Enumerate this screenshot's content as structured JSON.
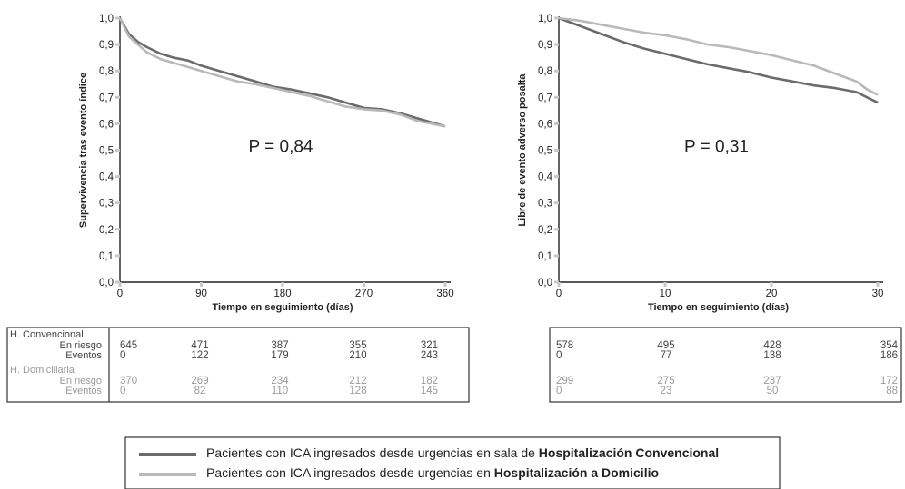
{
  "colors": {
    "conv": "#6b6b6b",
    "dom": "#b9b9b9",
    "axis": "#222222",
    "tick": "#c8c8c8"
  },
  "chart_data": [
    {
      "type": "line",
      "xlabel": "Tiempo en seguimiento (días)",
      "ylabel": "Supervivencia tras evento índice",
      "annotation": "P = 0,84",
      "xlim": [
        0,
        360
      ],
      "ylim": [
        0,
        1
      ],
      "xticks": [
        0,
        90,
        180,
        270,
        360
      ],
      "xtick_labels": [
        "0",
        "90",
        "180",
        "270",
        "360"
      ],
      "yticks": [
        0,
        0.1,
        0.2,
        0.3,
        0.4,
        0.5,
        0.6,
        0.7,
        0.8,
        0.9,
        1
      ],
      "ytick_labels": [
        "0,0",
        "0,1",
        "0,2",
        "0,3",
        "0,4",
        "0,5",
        "0,6",
        "0,7",
        "0,8",
        "0,9",
        "1,0"
      ],
      "grid": false,
      "series": [
        {
          "key": "conv",
          "x": [
            0,
            10,
            20,
            30,
            45,
            60,
            75,
            90,
            110,
            130,
            150,
            170,
            190,
            210,
            230,
            250,
            270,
            290,
            310,
            330,
            345,
            360
          ],
          "y": [
            1.0,
            0.94,
            0.91,
            0.89,
            0.865,
            0.85,
            0.84,
            0.82,
            0.8,
            0.78,
            0.76,
            0.74,
            0.73,
            0.715,
            0.7,
            0.68,
            0.66,
            0.655,
            0.64,
            0.62,
            0.605,
            0.59
          ]
        },
        {
          "key": "dom",
          "x": [
            0,
            10,
            20,
            30,
            45,
            60,
            75,
            90,
            110,
            130,
            150,
            170,
            190,
            210,
            230,
            250,
            270,
            290,
            310,
            330,
            345,
            360
          ],
          "y": [
            1.0,
            0.93,
            0.9,
            0.87,
            0.845,
            0.83,
            0.815,
            0.8,
            0.78,
            0.76,
            0.75,
            0.735,
            0.72,
            0.705,
            0.685,
            0.665,
            0.655,
            0.65,
            0.635,
            0.61,
            0.6,
            0.59
          ]
        }
      ],
      "risk_table": {
        "groups": [
          {
            "key": "conv",
            "name": "H. Convencional",
            "rows": [
              {
                "label": "En riesgo",
                "values": [
                  "645",
                  "471",
                  "387",
                  "355",
                  "321"
                ]
              },
              {
                "label": "Eventos",
                "values": [
                  "0",
                  "122",
                  "179",
                  "210",
                  "243"
                ]
              }
            ]
          },
          {
            "key": "dom",
            "name": "H. Domiciliaria",
            "rows": [
              {
                "label": "En riesgo",
                "values": [
                  "370",
                  "269",
                  "234",
                  "212",
                  "182"
                ]
              },
              {
                "label": "Eventos",
                "values": [
                  "0",
                  "82",
                  "110",
                  "128",
                  "145"
                ]
              }
            ]
          }
        ]
      }
    },
    {
      "type": "line",
      "xlabel": "Tiempo en seguimiento (días)",
      "ylabel": "Libre de evento adverso posalta",
      "annotation": "P = 0,31",
      "xlim": [
        0,
        30
      ],
      "ylim": [
        0,
        1
      ],
      "xticks": [
        0,
        10,
        20,
        30
      ],
      "xtick_labels": [
        "0",
        "10",
        "20",
        "30"
      ],
      "yticks": [
        0,
        0.1,
        0.2,
        0.3,
        0.4,
        0.5,
        0.6,
        0.7,
        0.8,
        0.9,
        1
      ],
      "ytick_labels": [
        "0,0",
        "0,1",
        "0,2",
        "0,3",
        "0,4",
        "0,5",
        "0,6",
        "0,7",
        "0,8",
        "0,9",
        "1,0"
      ],
      "grid": false,
      "series": [
        {
          "key": "conv",
          "x": [
            0,
            2,
            4,
            6,
            8,
            10,
            12,
            14,
            16,
            18,
            20,
            22,
            24,
            26,
            28,
            29,
            30
          ],
          "y": [
            1.0,
            0.97,
            0.94,
            0.91,
            0.885,
            0.865,
            0.845,
            0.825,
            0.81,
            0.795,
            0.775,
            0.76,
            0.745,
            0.735,
            0.72,
            0.7,
            0.68
          ]
        },
        {
          "key": "dom",
          "x": [
            0,
            2,
            4,
            6,
            8,
            10,
            12,
            14,
            16,
            18,
            20,
            22,
            24,
            26,
            28,
            29,
            30
          ],
          "y": [
            1.0,
            0.99,
            0.975,
            0.96,
            0.945,
            0.935,
            0.92,
            0.9,
            0.89,
            0.875,
            0.86,
            0.84,
            0.82,
            0.79,
            0.76,
            0.73,
            0.71
          ]
        }
      ],
      "risk_table": {
        "groups": [
          {
            "key": "conv",
            "name": "",
            "rows": [
              {
                "label": "",
                "values": [
                  "578",
                  "495",
                  "428",
                  "354"
                ]
              },
              {
                "label": "",
                "values": [
                  "0",
                  "77",
                  "138",
                  "186"
                ]
              }
            ]
          },
          {
            "key": "dom",
            "name": "",
            "rows": [
              {
                "label": "",
                "values": [
                  "299",
                  "275",
                  "237",
                  "172"
                ]
              },
              {
                "label": "",
                "values": [
                  "0",
                  "23",
                  "50",
                  "88"
                ]
              }
            ]
          }
        ]
      }
    }
  ],
  "legend": {
    "items": [
      {
        "key": "conv",
        "text": "Pacientes con ICA ingresados desde urgencias en sala de ",
        "bold": "Hospitalización Convencional"
      },
      {
        "key": "dom",
        "text": "Pacientes con ICA ingresados desde urgencias en ",
        "bold": "Hospitalización a Domicilio"
      }
    ]
  }
}
